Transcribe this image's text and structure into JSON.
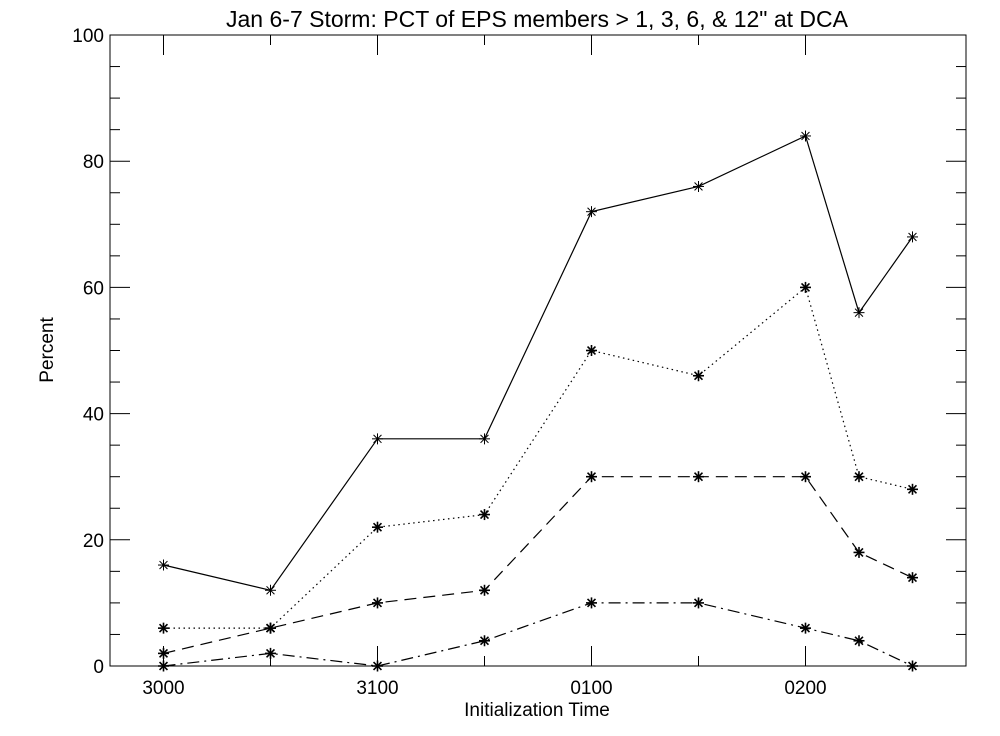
{
  "chart_data": {
    "type": "line",
    "title": "Jan 6-7 Storm: PCT of EPS members > 1, 3, 6, & 12\" at DCA",
    "xlabel": "Initialization Time",
    "ylabel": "Percent",
    "x_tick_labels": [
      {
        "label": "3000",
        "x": 0
      },
      {
        "label": "3100",
        "x": 2
      },
      {
        "label": "0100",
        "x": 4
      },
      {
        "label": "0200",
        "x": 6
      }
    ],
    "x": [
      0,
      1,
      2,
      3,
      4,
      5,
      6,
      6.5,
      7
    ],
    "xlim": [
      -0.5,
      7.5
    ],
    "ylim": [
      0,
      100
    ],
    "y_ticks": [
      0,
      20,
      40,
      60,
      80,
      100
    ],
    "grid": false,
    "series": [
      {
        "values": [
          16,
          12,
          36,
          36,
          72,
          76,
          84,
          56,
          68
        ],
        "line_style": "solid"
      },
      {
        "values": [
          6,
          6,
          22,
          24,
          50,
          46,
          60,
          30,
          28
        ],
        "line_style": "dotted"
      },
      {
        "values": [
          2,
          6,
          10,
          12,
          30,
          30,
          30,
          18,
          14
        ],
        "line_style": "dashed"
      },
      {
        "values": [
          0,
          2,
          0,
          4,
          10,
          10,
          6,
          4,
          0
        ],
        "line_style": "dash-dot"
      }
    ],
    "colors": {
      "line": "#000000",
      "background": "#ffffff"
    }
  }
}
